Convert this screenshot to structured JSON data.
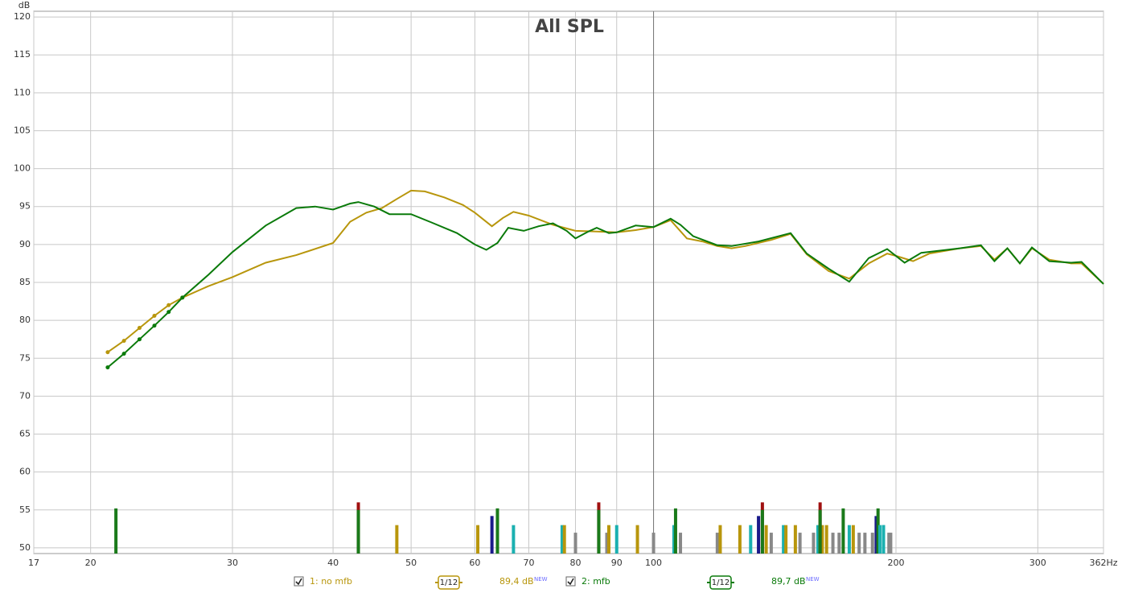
{
  "chart_data": {
    "type": "line",
    "title": "All SPL",
    "y_label": "dB",
    "log_x": true,
    "grid": true,
    "cursor_x": 100,
    "xlim": [
      17,
      362
    ],
    "xticks": [
      17,
      20,
      30,
      40,
      50,
      60,
      70,
      80,
      90,
      100,
      200,
      300,
      {
        "value": 362,
        "label": "362Hz"
      }
    ],
    "ylim": [
      49.25,
      120.75
    ],
    "yticks": [
      50,
      55,
      60,
      65,
      70,
      75,
      80,
      85,
      90,
      95,
      100,
      105,
      110,
      115,
      120
    ],
    "dotted_below": 26,
    "series": [
      {
        "name": "1: no mfb",
        "color": "#b8960c",
        "smoothing": "1/12",
        "level": "89,4 dB",
        "badge": "NEW",
        "x": [
          21,
          22,
          23,
          24,
          25,
          26,
          28,
          30,
          33,
          36,
          40,
          42,
          44,
          46,
          48,
          50,
          52,
          55,
          58,
          60,
          63,
          65,
          67,
          70,
          75,
          80,
          85,
          90,
          95,
          100,
          105,
          110,
          115,
          120,
          125,
          130,
          140,
          148,
          155,
          165,
          175,
          185,
          195,
          200,
          210,
          220,
          240,
          255,
          265,
          275,
          285,
          295,
          310,
          330,
          340,
          362
        ],
        "values": [
          75.8,
          77.3,
          79,
          80.6,
          82,
          83,
          84.5,
          85.7,
          87.6,
          88.6,
          90.2,
          93,
          94.2,
          94.8,
          96,
          97.1,
          97,
          96.2,
          95.2,
          94.2,
          92.4,
          93.5,
          94.3,
          93.8,
          92.6,
          91.8,
          91.7,
          91.6,
          91.9,
          92.3,
          93.2,
          90.8,
          90.4,
          89.8,
          89.5,
          89.8,
          90.6,
          91.4,
          88.7,
          86.5,
          85.5,
          87.5,
          88.8,
          88.5,
          87.8,
          88.8,
          89.5,
          89.8,
          88,
          89.5,
          87.5,
          89.5,
          88,
          87.5,
          87.5,
          84.8
        ]
      },
      {
        "name": "2: mfb",
        "color": "#0a7a0a",
        "smoothing": "1/12",
        "level": "89,7 dB",
        "badge": "NEW",
        "x": [
          21,
          22,
          23,
          24,
          25,
          26,
          28,
          30,
          33,
          36,
          38,
          40,
          42,
          43,
          45,
          47,
          50,
          53,
          57,
          60,
          62,
          64,
          66,
          69,
          72,
          75,
          78,
          80,
          83,
          85,
          88,
          90,
          95,
          100,
          105,
          108,
          112,
          120,
          125,
          135,
          148,
          155,
          165,
          175,
          185,
          195,
          205,
          215,
          240,
          255,
          265,
          275,
          285,
          295,
          310,
          330,
          340,
          362
        ],
        "values": [
          73.8,
          75.6,
          77.5,
          79.3,
          81.1,
          83,
          86,
          89,
          92.5,
          94.8,
          95,
          94.6,
          95.4,
          95.6,
          95,
          94,
          94,
          92.9,
          91.5,
          90,
          89.3,
          90.2,
          92.2,
          91.8,
          92.4,
          92.8,
          91.8,
          90.8,
          91.7,
          92.2,
          91.5,
          91.6,
          92.5,
          92.3,
          93.4,
          92.6,
          91.1,
          89.9,
          89.8,
          90.4,
          91.5,
          88.8,
          86.8,
          85.1,
          88.2,
          89.4,
          87.6,
          88.9,
          89.5,
          89.9,
          87.8,
          89.5,
          87.5,
          89.6,
          87.8,
          87.6,
          87.7,
          84.8
        ]
      }
    ],
    "modes": {
      "x": [
        21.5,
        43,
        43,
        48,
        60.5,
        63,
        64,
        64,
        67,
        77,
        77.5,
        80,
        85.5,
        85.5,
        87.5,
        88,
        90,
        95.5,
        100,
        106,
        106.5,
        108,
        120,
        121,
        128,
        132,
        135,
        136.5,
        136.5,
        138,
        140,
        145,
        146,
        150,
        152,
        158,
        160,
        162,
        167,
        170,
        172,
        175,
        177,
        180,
        183,
        187,
        193,
        196,
        161,
        161,
        164,
        189,
        190,
        191,
        193,
        197
      ],
      "values": [
        55.2,
        56,
        55,
        53,
        53,
        54.2,
        55.2,
        55.2,
        53,
        53,
        53,
        52,
        56,
        55,
        52,
        53,
        53,
        53,
        52,
        53,
        55.2,
        52,
        52,
        53,
        53,
        53,
        54.2,
        56,
        55,
        53,
        52,
        53,
        53,
        53,
        52,
        52,
        53,
        53,
        52,
        52,
        55.2,
        53,
        53,
        52,
        52,
        52,
        53,
        52,
        56,
        55,
        53,
        54.2,
        55.2,
        53,
        53,
        52
      ],
      "colors": [
        "#1a7a1a",
        "#a01010",
        "#1a7a1a",
        "#b8960c",
        "#b8960c",
        "#1a1a8a",
        "#1a7a1a",
        "#1a7a1a",
        "#1ab0b0",
        "#1ab0b0",
        "#b8960c",
        "#888888",
        "#a01010",
        "#1a7a1a",
        "#888888",
        "#b8960c",
        "#1ab0b0",
        "#b8960c",
        "#888888",
        "#1ab0b0",
        "#1a7a1a",
        "#888888",
        "#888888",
        "#b8960c",
        "#b8960c",
        "#1ab0b0",
        "#1a1a8a",
        "#a01010",
        "#1a7a1a",
        "#b8960c",
        "#888888",
        "#1ab0b0",
        "#b8960c",
        "#b8960c",
        "#888888",
        "#888888",
        "#1ab0b0",
        "#b8960c",
        "#888888",
        "#888888",
        "#1a7a1a",
        "#1ab0b0",
        "#b8960c",
        "#888888",
        "#888888",
        "#888888",
        "#1ab0b0",
        "#888888",
        "#a01010",
        "#1a7a1a",
        "#b8960c",
        "#1a1a8a",
        "#1a7a1a",
        "#1ab0b0",
        "#1ab0b0",
        "#888888"
      ]
    }
  }
}
